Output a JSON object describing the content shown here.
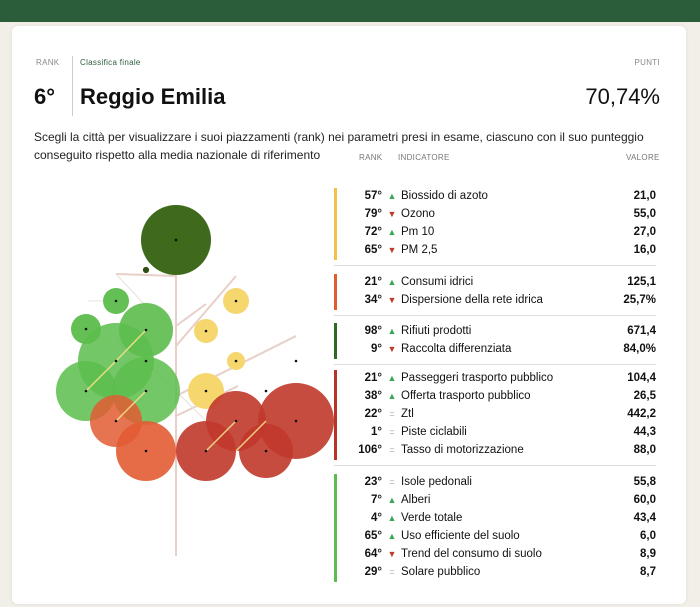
{
  "header": {
    "rank_label": "RANK",
    "final_label": "Classifica finale",
    "points_label": "PUNTI",
    "rank": "6°",
    "city": "Reggio Emilia",
    "score": "70,74%"
  },
  "description": "Scegli la città per visualizzare i suoi piazzamenti (rank) nei parametri presi in esame, ciascuno con il suo punteggio conseguito rispetto alla media nazionale di riferimento",
  "table": {
    "col_rank": "RANK",
    "col_indicator": "INDICATORE",
    "col_value": "VALORE",
    "groups": [
      {
        "color": "#f0c24a",
        "rows": [
          {
            "rank": "57°",
            "trend": "up",
            "name": "Biossido di azoto",
            "value": "21,0"
          },
          {
            "rank": "79°",
            "trend": "down",
            "name": "Ozono",
            "value": "55,0"
          },
          {
            "rank": "72°",
            "trend": "up",
            "name": "Pm 10",
            "value": "27,0"
          },
          {
            "rank": "65°",
            "trend": "down",
            "name": "PM 2,5",
            "value": "16,0"
          }
        ]
      },
      {
        "color": "#e25c33",
        "rows": [
          {
            "rank": "21°",
            "trend": "up",
            "name": "Consumi idrici",
            "value": "125,1"
          },
          {
            "rank": "34°",
            "trend": "down",
            "name": "Dispersione della rete idrica",
            "value": "25,7%"
          }
        ]
      },
      {
        "color": "#2f6a25",
        "rows": [
          {
            "rank": "98°",
            "trend": "up",
            "name": "Rifiuti prodotti",
            "value": "671,4"
          },
          {
            "rank": "9°",
            "trend": "down",
            "name": "Raccolta differenziata",
            "value": "84,0%"
          }
        ]
      },
      {
        "color": "#b83327",
        "rows": [
          {
            "rank": "21°",
            "trend": "up",
            "name": "Passeggeri trasporto pubblico",
            "value": "104,4"
          },
          {
            "rank": "38°",
            "trend": "up",
            "name": "Offerta trasporto pubblico",
            "value": "26,5"
          },
          {
            "rank": "22°",
            "trend": "eq",
            "name": "Ztl",
            "value": "442,2"
          },
          {
            "rank": "1°",
            "trend": "eq",
            "name": "Piste ciclabili",
            "value": "44,3"
          },
          {
            "rank": "106°",
            "trend": "eq",
            "name": "Tasso di motorizzazione",
            "value": "88,0"
          }
        ]
      },
      {
        "color": "#5cbd4c",
        "rows": [
          {
            "rank": "23°",
            "trend": "eq",
            "name": "Isole pedonali",
            "value": "55,8"
          },
          {
            "rank": "7°",
            "trend": "up",
            "name": "Alberi",
            "value": "60,0"
          },
          {
            "rank": "4°",
            "trend": "up",
            "name": "Verde totale",
            "value": "43,4"
          },
          {
            "rank": "65°",
            "trend": "up",
            "name": "Uso efficiente del suolo",
            "value": "6,0"
          },
          {
            "rank": "64°",
            "trend": "down",
            "name": "Trend del consumo di suolo",
            "value": "8,9"
          },
          {
            "rank": "29°",
            "trend": "eq",
            "name": "Solare pubblico",
            "value": "8,7"
          }
        ]
      }
    ]
  },
  "trend_glyphs": {
    "up": "▲",
    "down": "▼",
    "eq": "="
  }
}
